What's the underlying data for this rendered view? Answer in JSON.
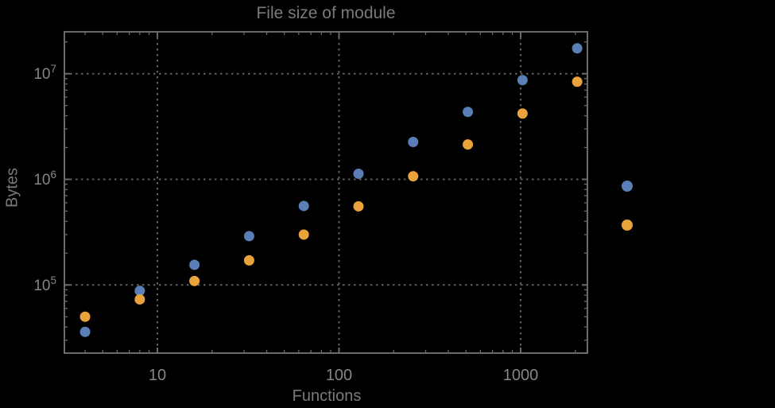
{
  "title": "File size of module",
  "colors": {
    "background": "#000000",
    "frame": "#6b6b6b",
    "grid": "#606060",
    "label_text": "#7a7a7a",
    "tick_text": "#868686",
    "series_blue": "#5A7FB6",
    "series_orange": "#E9A33B"
  },
  "axes": {
    "x": {
      "label": "Functions",
      "scale": "log",
      "range": [
        3.1,
        2330
      ],
      "major_ticks": [
        {
          "value": 10,
          "label": "10"
        },
        {
          "value": 100,
          "label": "100"
        },
        {
          "value": 1000,
          "label": "1000"
        }
      ]
    },
    "y": {
      "label": "Bytes",
      "scale": "log",
      "range": [
        23000,
        25000000
      ],
      "major_ticks": [
        {
          "value": 100000,
          "mantissa": "10",
          "exponent": "5"
        },
        {
          "value": 1000000,
          "mantissa": "10",
          "exponent": "6"
        },
        {
          "value": 10000000,
          "mantissa": "10",
          "exponent": "7"
        }
      ]
    }
  },
  "chart_data": {
    "type": "scatter",
    "title": "File size of module",
    "xlabel": "Functions",
    "ylabel": "Bytes",
    "x_scale": "log",
    "y_scale": "log",
    "xlim": [
      3.1,
      2330
    ],
    "ylim": [
      23000,
      25000000
    ],
    "grid": "dotted lines at powers of ten",
    "x": [
      4,
      8,
      16,
      32,
      64,
      128,
      256,
      512,
      1024,
      2048
    ],
    "series": [
      {
        "name": "blue",
        "color": "#5A7FB6",
        "values": [
          36000,
          88000,
          155000,
          290000,
          560000,
          1130000,
          2260000,
          4350000,
          8700000,
          17400000
        ]
      },
      {
        "name": "orange",
        "color": "#E9A33B",
        "values": [
          50000,
          73000,
          109000,
          171000,
          300000,
          555000,
          1070000,
          2140000,
          4200000,
          8400000
        ]
      }
    ],
    "legend": {
      "position": "right-outside",
      "labels_visible": false,
      "entries": [
        {
          "name": "blue",
          "color": "#5A7FB6"
        },
        {
          "name": "orange",
          "color": "#E9A33B"
        }
      ]
    }
  }
}
